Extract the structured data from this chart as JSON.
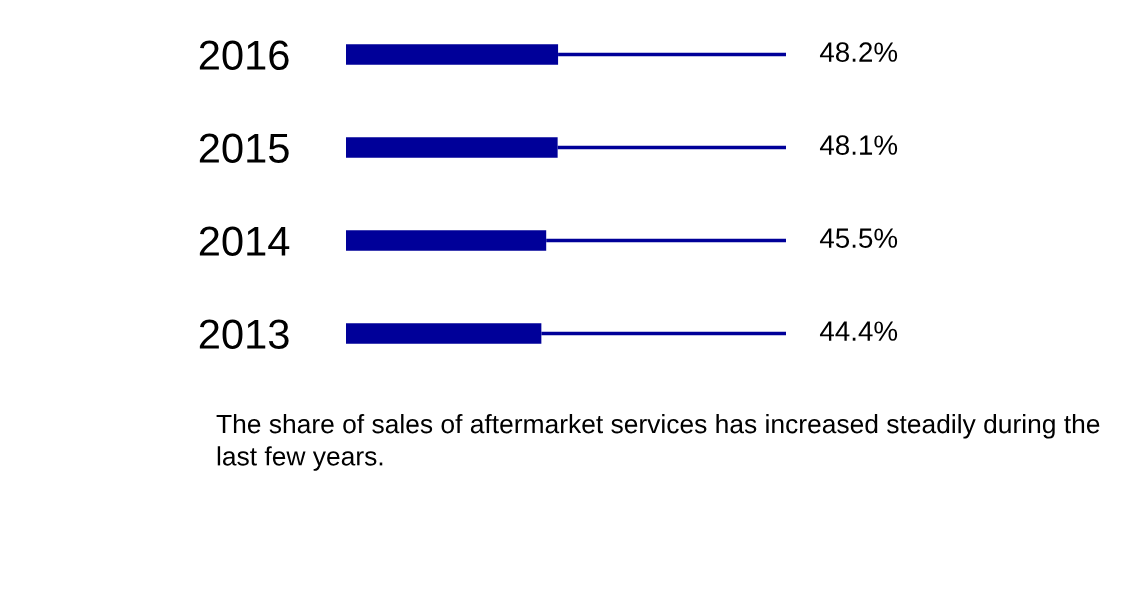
{
  "chart_data": {
    "type": "bar",
    "orientation": "horizontal",
    "stacked": true,
    "categories": [
      "2016",
      "2015",
      "2014",
      "2013"
    ],
    "series": [
      {
        "color": "#000099",
        "values": [
          48.2,
          48.1,
          45.5,
          44.4
        ],
        "value_labels": [
          "48.2%",
          "48.1%",
          "45.5%",
          "44.4%"
        ]
      },
      {
        "color": "#000099",
        "values": [
          51.8,
          51.9,
          54.5,
          55.6
        ]
      }
    ],
    "tick_labels": "y",
    "grid": false,
    "annotations": [
      "The share of sales of aftermarket services has increased steadily during the last few years."
    ]
  }
}
